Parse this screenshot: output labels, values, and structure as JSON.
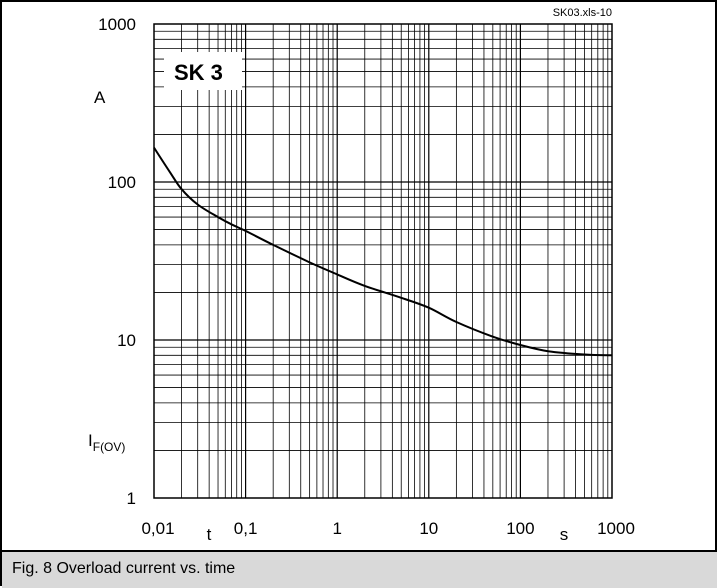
{
  "chart_data": {
    "type": "line",
    "title": "SK 3",
    "file_label": "SK03.xls-10",
    "caption": "Fig. 8 Overload current vs. time",
    "xlabel": "t",
    "xunit": "s",
    "ylabel_main": "I",
    "ylabel_sub": "F(OV)",
    "yunit": "A",
    "x_scale": "log",
    "y_scale": "log",
    "xlim": [
      0.01,
      1000
    ],
    "ylim": [
      1,
      1000
    ],
    "x_ticks": [
      "0,01",
      "0,1",
      "1",
      "10",
      "100",
      "1000"
    ],
    "y_ticks": [
      "1",
      "10",
      "100",
      "1000"
    ],
    "grid": true,
    "series": [
      {
        "x": [
          0.01,
          0.015,
          0.02,
          0.03,
          0.05,
          0.07,
          0.1,
          0.2,
          0.5,
          1,
          2,
          5,
          10,
          20,
          50,
          100,
          200,
          500,
          1000
        ],
        "y": [
          165,
          115,
          90,
          72,
          60,
          54,
          49,
          40,
          31,
          26,
          22,
          18.5,
          16,
          13,
          10.5,
          9.3,
          8.5,
          8.1,
          8
        ]
      }
    ]
  }
}
